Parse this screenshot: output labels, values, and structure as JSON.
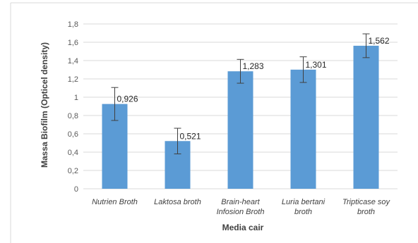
{
  "chart_data": {
    "type": "bar",
    "title": "",
    "xlabel": "Media cair",
    "ylabel": "Massa Biofilm (Opticel density)",
    "categories": [
      [
        "Nutrien Broth"
      ],
      [
        "Laktosa broth"
      ],
      [
        "Brain-heart",
        "Infosion Broth"
      ],
      [
        "Luria bertani",
        "broth"
      ],
      [
        "Tripticase soy",
        "broth"
      ]
    ],
    "values": [
      0.926,
      0.521,
      1.283,
      1.301,
      1.562
    ],
    "value_labels": [
      "0,926",
      "0,521",
      "1,283",
      "1,301",
      "1,562"
    ],
    "error_bars": [
      0.18,
      0.14,
      0.13,
      0.14,
      0.13
    ],
    "ylim": [
      0,
      1.8
    ],
    "yticks": [
      0,
      0.2,
      0.4,
      0.6,
      0.8,
      1,
      1.2,
      1.4,
      1.6,
      1.8
    ],
    "ytick_labels": [
      "0",
      "0,2",
      "0,4",
      "0,6",
      "0,8",
      "1",
      "1,2",
      "1,4",
      "1,6",
      "1,8"
    ],
    "grid": true,
    "legend": "none",
    "colors": {
      "bar": "#5b9bd5",
      "grid": "#d9d9d9",
      "error_bar": "#404040",
      "frame": "#d9d9d9"
    }
  }
}
